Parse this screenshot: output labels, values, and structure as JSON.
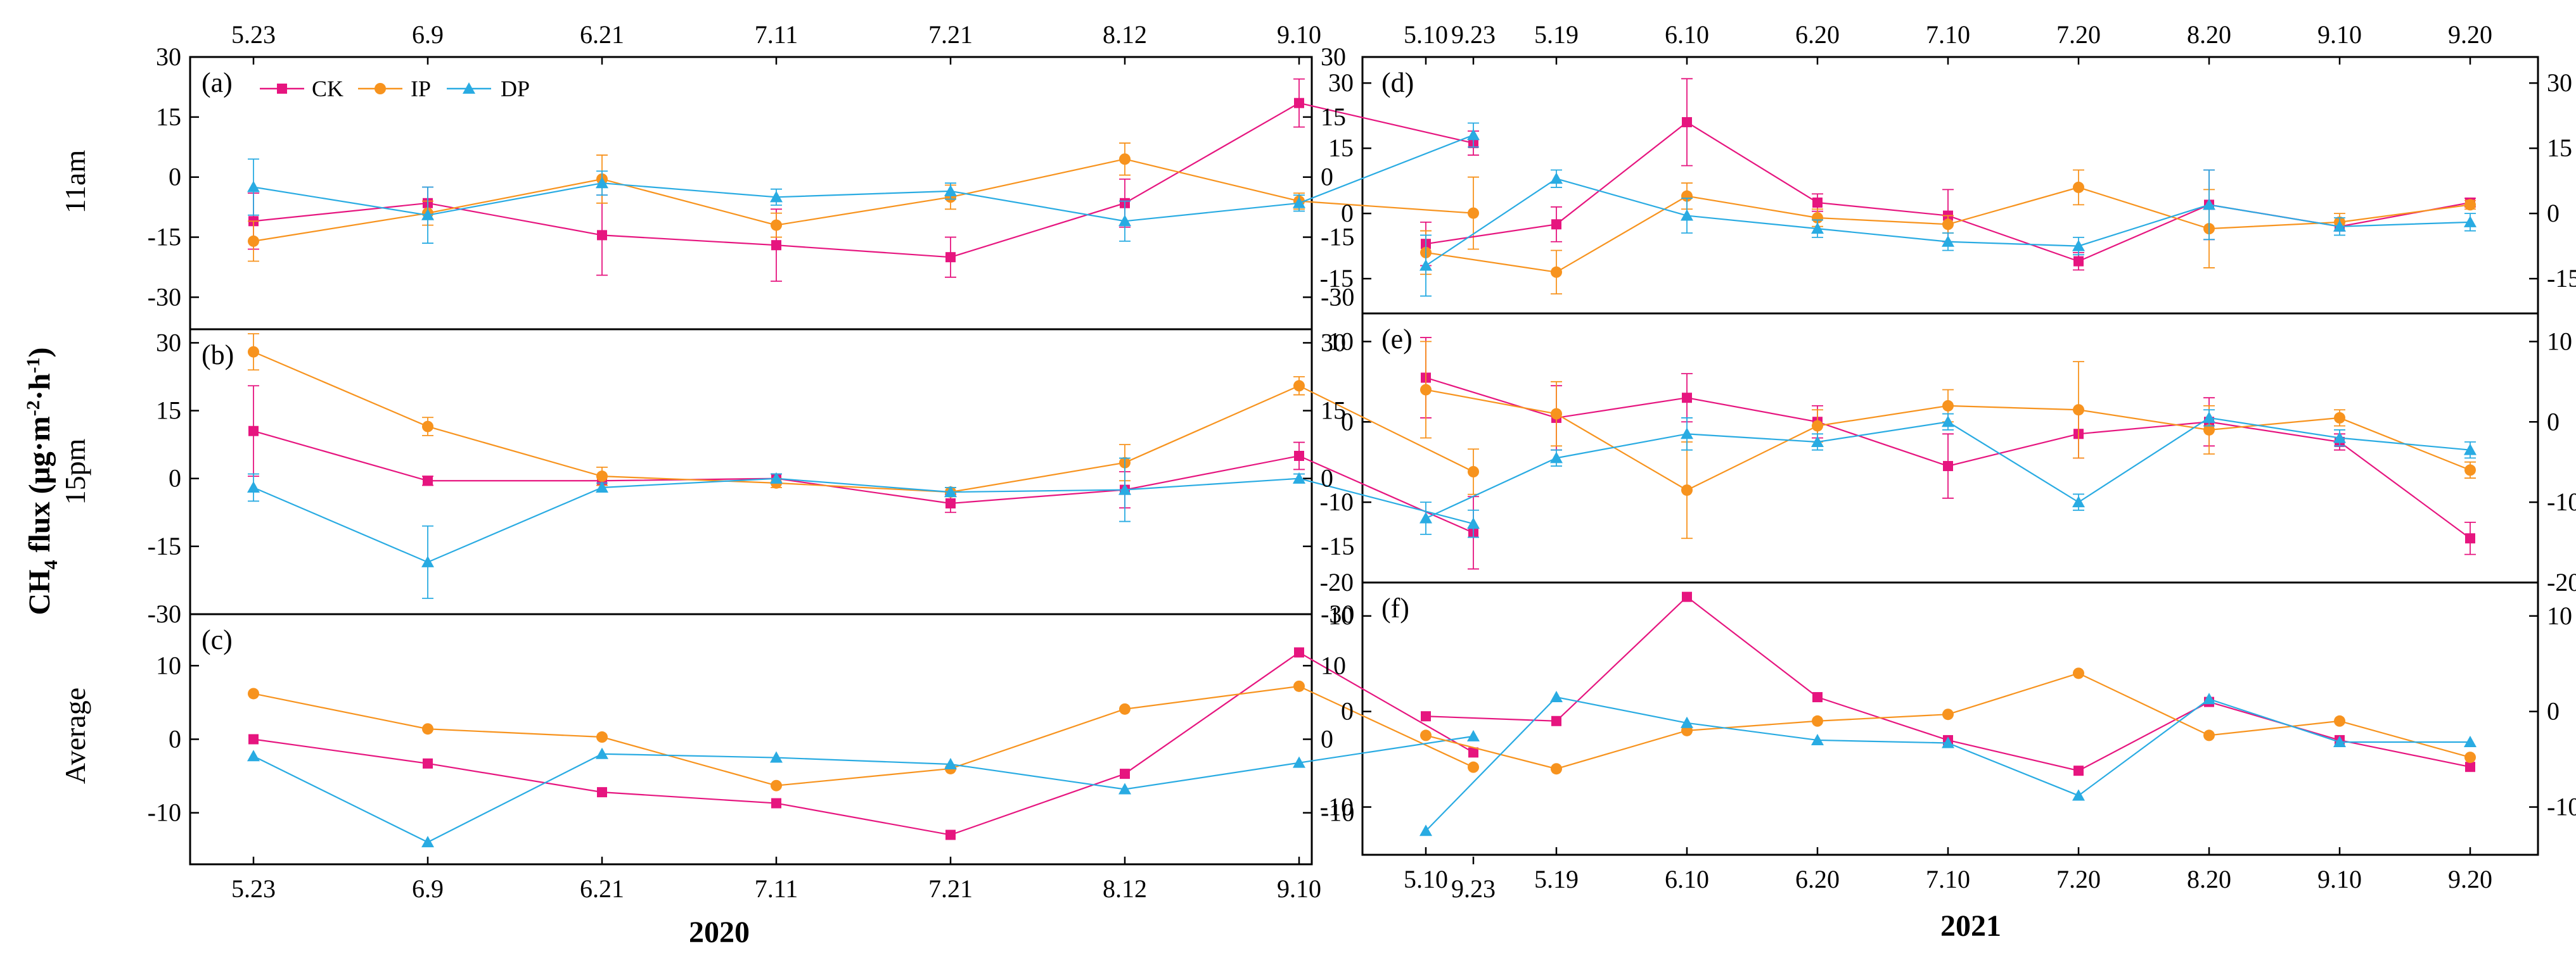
{
  "figure": {
    "ylabel": {
      "main": "CH",
      "sub": "4",
      "rest": " flux (μg·m",
      "sup1": "-2",
      "mid": "·h",
      "sup2": "-1",
      "end": ")"
    },
    "colors": {
      "CK": "#e6157f",
      "IP": "#f7931e",
      "DP": "#29abe2"
    }
  },
  "chart_data": [
    {
      "type": "line",
      "panel": "(a)",
      "row_label": "11am",
      "year": "2020",
      "categories": [
        "5.23",
        "6.9",
        "6.21",
        "7.11",
        "7.21",
        "8.12",
        "9.10",
        "9.23"
      ],
      "ylim": [
        -38,
        30
      ],
      "yticks": [
        30,
        15,
        0,
        -15,
        -30
      ],
      "ytick_labels": [
        "30",
        "15",
        "0",
        "-15",
        "-30"
      ],
      "legend": [
        "CK",
        "IP",
        "DP"
      ],
      "series": [
        {
          "name": "CK",
          "values": [
            -11,
            -6.5,
            -14.5,
            -17,
            -20,
            -6.5,
            18.5,
            8.5
          ],
          "err": [
            7,
            4,
            10,
            9,
            5,
            6,
            6,
            3
          ]
        },
        {
          "name": "IP",
          "values": [
            -16,
            -9,
            -0.5,
            -12,
            -5,
            4.5,
            -6,
            -9
          ],
          "err": [
            5,
            3,
            6,
            3,
            3,
            4,
            2,
            9
          ]
        },
        {
          "name": "DP",
          "values": [
            -2.5,
            -9.5,
            -1.5,
            -5,
            -3.5,
            -11,
            -6.5,
            10.5
          ],
          "err": [
            7,
            7,
            3,
            2,
            2,
            5,
            2,
            3
          ]
        }
      ]
    },
    {
      "type": "line",
      "panel": "(b)",
      "row_label": "15pm",
      "year": "2020",
      "categories": [
        "5.23",
        "6.9",
        "6.21",
        "7.11",
        "7.21",
        "8.12",
        "9.10",
        "9.23"
      ],
      "ylim": [
        -30,
        33
      ],
      "yticks": [
        30,
        15,
        0,
        -15,
        -30
      ],
      "ytick_labels": [
        "30",
        "15",
        "0",
        "-15",
        "-30"
      ],
      "series": [
        {
          "name": "CK",
          "values": [
            10.5,
            -0.5,
            -0.5,
            0,
            -5.5,
            -2.5,
            5,
            -12
          ],
          "err": [
            10,
            1,
            1,
            1,
            2,
            4,
            3,
            8
          ]
        },
        {
          "name": "IP",
          "values": [
            28,
            11.5,
            0.5,
            -1,
            -3,
            3.5,
            20.5,
            1.5
          ],
          "err": [
            4,
            2,
            2,
            1,
            1,
            4,
            2,
            5
          ]
        },
        {
          "name": "DP",
          "values": [
            -2,
            -18.5,
            -2,
            0,
            -3,
            -2.5,
            0,
            -10
          ],
          "err": [
            3,
            8,
            1,
            1,
            1,
            7,
            1,
            3
          ]
        }
      ]
    },
    {
      "type": "line",
      "panel": "(c)",
      "row_label": "Average",
      "year": "2020",
      "categories": [
        "5.23",
        "6.9",
        "6.21",
        "7.11",
        "7.21",
        "8.12",
        "9.10",
        "9.23"
      ],
      "ylim": [
        -17,
        17
      ],
      "yticks": [
        10,
        0,
        -10
      ],
      "ytick_labels": [
        "10",
        "0",
        "-10"
      ],
      "series": [
        {
          "name": "CK",
          "values": [
            0,
            -3.3,
            -7.2,
            -8.7,
            -13,
            -4.7,
            11.8,
            -1.8
          ]
        },
        {
          "name": "IP",
          "values": [
            6.2,
            1.4,
            0.3,
            -6.3,
            -4,
            4.1,
            7.2,
            -3.8
          ]
        },
        {
          "name": "DP",
          "values": [
            -2.3,
            -14,
            -2,
            -2.5,
            -3.4,
            -6.8,
            -3.2,
            0.4
          ]
        }
      ]
    },
    {
      "type": "line",
      "panel": "(d)",
      "year": "2021",
      "categories": [
        "5.10",
        "5.19",
        "6.10",
        "6.20",
        "7.10",
        "7.20",
        "8.20",
        "9.10",
        "9.20"
      ],
      "ylim": [
        -23,
        36
      ],
      "yticks": [
        30,
        15,
        0,
        -15
      ],
      "ytick_labels": [
        "30",
        "15",
        "0",
        "-15"
      ],
      "series": [
        {
          "name": "CK",
          "values": [
            -7,
            -2.5,
            21,
            2.5,
            -0.5,
            -11,
            2,
            -3,
            2.5
          ],
          "err": [
            5,
            4,
            10,
            2,
            6,
            2,
            8,
            1,
            1
          ]
        },
        {
          "name": "IP",
          "values": [
            -9,
            -13.5,
            4,
            -1,
            -2.5,
            6,
            -3.5,
            -2,
            2
          ],
          "err": [
            5,
            5,
            3,
            2,
            2,
            4,
            9,
            2,
            1
          ]
        },
        {
          "name": "DP",
          "values": [
            -12,
            8,
            -0.5,
            -3.5,
            -6.5,
            -7.5,
            2,
            -3,
            -2
          ],
          "err": [
            7,
            2,
            4,
            2,
            2,
            2,
            8,
            2,
            2
          ]
        }
      ]
    },
    {
      "type": "line",
      "panel": "(e)",
      "year": "2021",
      "categories": [
        "5.10",
        "5.19",
        "6.10",
        "6.20",
        "7.10",
        "7.20",
        "8.20",
        "9.10",
        "9.20"
      ],
      "ylim": [
        -20,
        13.5
      ],
      "yticks": [
        10,
        0,
        -10,
        -20
      ],
      "ytick_labels": [
        "10",
        "0",
        "-10",
        "-20"
      ],
      "series": [
        {
          "name": "CK",
          "values": [
            5.5,
            0.5,
            3,
            0,
            -5.5,
            -1.5,
            0,
            -2.5,
            -14.5
          ],
          "err": [
            5,
            4,
            3,
            2,
            4,
            3,
            3,
            1,
            2
          ]
        },
        {
          "name": "IP",
          "values": [
            4,
            1,
            -8.5,
            -0.5,
            2,
            1.5,
            -1,
            0.5,
            -6
          ],
          "err": [
            6,
            4,
            6,
            2,
            2,
            6,
            3,
            1,
            1
          ]
        },
        {
          "name": "DP",
          "values": [
            -12,
            -4.5,
            -1.5,
            -2.5,
            0,
            -10,
            0.5,
            -2,
            -3.5
          ],
          "err": [
            2,
            1,
            2,
            1,
            1,
            1,
            1,
            1,
            1
          ]
        }
      ]
    },
    {
      "type": "line",
      "panel": "(f)",
      "year": "2021",
      "categories": [
        "5.10",
        "5.19",
        "6.10",
        "6.20",
        "7.10",
        "7.20",
        "8.20",
        "9.10",
        "9.20"
      ],
      "ylim": [
        -15,
        13.5
      ],
      "yticks": [
        10,
        0,
        -10
      ],
      "ytick_labels": [
        "10",
        "0",
        "-10"
      ],
      "series": [
        {
          "name": "CK",
          "values": [
            -0.5,
            -1,
            12,
            1.5,
            -3,
            -6.2,
            1,
            -3,
            -5.8
          ]
        },
        {
          "name": "IP",
          "values": [
            -2.5,
            -6,
            -2,
            -1,
            -0.3,
            4,
            -2.5,
            -1,
            -4.8
          ]
        },
        {
          "name": "DP",
          "values": [
            -12.5,
            1.5,
            -1.2,
            -3,
            -3.3,
            -8.8,
            1.3,
            -3.2,
            -3.2
          ]
        }
      ]
    }
  ]
}
